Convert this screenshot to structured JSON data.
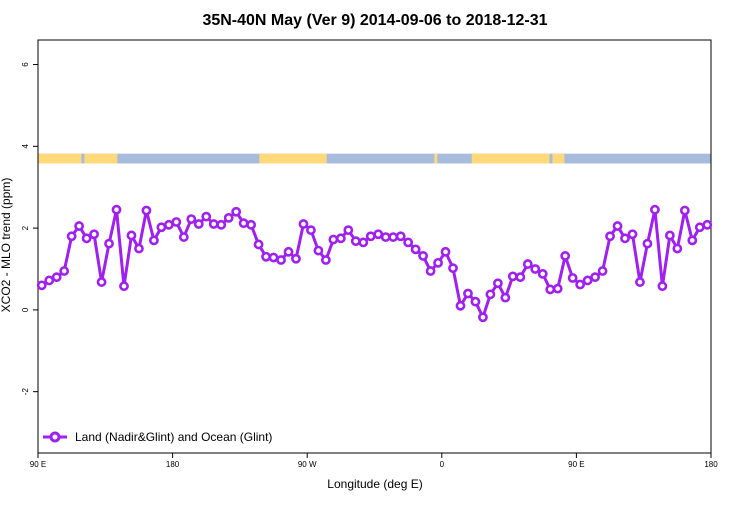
{
  "chart_data": {
    "type": "line",
    "title": "35N-40N May (Ver 9)   2014-09-06 to 2018-12-31",
    "xlabel": "Longitude (deg E)",
    "ylabel": "XCO2 - MLO trend (ppm)",
    "xlim": [
      90,
      540
    ],
    "ylim": [
      -3.5,
      6.6
    ],
    "x_ticks": [
      {
        "value": 90,
        "label": "90 E"
      },
      {
        "value": 180,
        "label": "180"
      },
      {
        "value": 270,
        "label": "90 W"
      },
      {
        "value": 360,
        "label": "0"
      },
      {
        "value": 450,
        "label": "90 E"
      },
      {
        "value": 540,
        "label": "180"
      }
    ],
    "y_ticks": [
      {
        "value": -2,
        "label": "-2"
      },
      {
        "value": 0,
        "label": "0"
      },
      {
        "value": 2,
        "label": "2"
      },
      {
        "value": 4,
        "label": "4"
      },
      {
        "value": 6,
        "label": "6"
      }
    ],
    "grid": false,
    "legend_position": "bottom-left",
    "land_ocean_band": {
      "y_range": [
        3.58,
        3.82
      ],
      "ocean_color": "#a7bcdc",
      "land_color": "#ffd97a",
      "land_segments": [
        [
          90,
          119
        ],
        [
          121,
          143
        ],
        [
          238,
          283
        ],
        [
          355,
          357
        ],
        [
          380,
          432
        ],
        [
          434,
          442
        ]
      ]
    },
    "series": [
      {
        "name": "Land (Nadir&Glint) and Ocean (Glint)",
        "color": "#a020f0",
        "x": [
          92.5,
          97.5,
          102.5,
          107.5,
          112.5,
          117.5,
          122.5,
          127.5,
          132.5,
          137.5,
          142.5,
          147.5,
          152.5,
          157.5,
          162.5,
          167.5,
          172.5,
          177.5,
          182.5,
          187.5,
          192.5,
          197.5,
          202.5,
          207.5,
          212.5,
          217.5,
          222.5,
          227.5,
          232.5,
          237.5,
          242.5,
          247.5,
          252.5,
          257.5,
          262.5,
          267.5,
          272.5,
          277.5,
          282.5,
          287.5,
          292.5,
          297.5,
          302.5,
          307.5,
          312.5,
          317.5,
          322.5,
          327.5,
          332.5,
          337.5,
          342.5,
          347.5,
          352.5,
          357.5,
          362.5,
          367.5,
          372.5,
          377.5,
          382.5,
          387.5,
          392.5,
          397.5,
          402.5,
          407.5,
          412.5,
          417.5,
          422.5,
          427.5,
          432.5,
          437.5,
          442.5,
          447.5,
          452.5,
          457.5,
          462.5,
          467.5,
          472.5,
          477.5,
          482.5,
          487.5,
          492.5,
          497.5,
          502.5,
          507.5,
          512.5,
          517.5,
          522.5,
          527.5,
          532.5,
          537.5
        ],
        "y": [
          0.6,
          0.72,
          0.8,
          0.95,
          1.8,
          2.05,
          1.75,
          1.85,
          0.68,
          1.62,
          2.45,
          0.58,
          1.82,
          1.5,
          2.43,
          1.7,
          2.02,
          2.08,
          2.15,
          1.78,
          2.22,
          2.1,
          2.28,
          2.1,
          2.08,
          2.25,
          2.4,
          2.12,
          2.08,
          1.6,
          1.3,
          1.28,
          1.22,
          1.42,
          1.25,
          2.1,
          1.95,
          1.45,
          1.22,
          1.72,
          1.75,
          1.95,
          1.68,
          1.65,
          1.8,
          1.85,
          1.78,
          1.78,
          1.8,
          1.65,
          1.48,
          1.32,
          0.95,
          1.15,
          1.42,
          1.02,
          0.1,
          0.4,
          0.2,
          -0.18,
          0.38,
          0.65,
          0.3,
          0.82,
          0.8,
          1.12,
          1.0,
          0.88,
          0.5,
          0.52,
          1.32,
          0.78,
          0.62,
          0.72,
          0.8,
          0.95,
          1.8,
          2.05,
          1.75,
          1.85,
          0.68,
          1.62,
          2.45,
          0.58,
          1.82,
          1.5,
          2.43,
          1.7,
          2.02,
          2.08
        ]
      }
    ]
  }
}
